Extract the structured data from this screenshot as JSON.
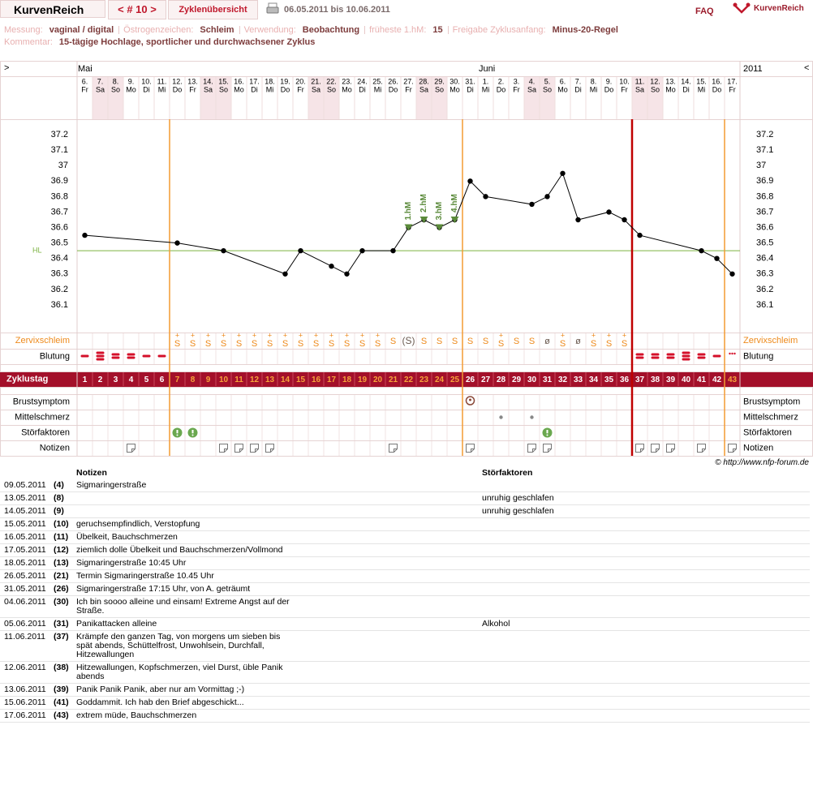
{
  "header": {
    "logo": "KurvenReich",
    "nav": "< # 10 >",
    "overview": "Zyklenübersicht",
    "range": "06.05.2011 bis 10.06.2011",
    "faq": "FAQ",
    "brand": "KurvenReich"
  },
  "info": {
    "fields": [
      {
        "label": "Messung:",
        "value": "vaginal / digital"
      },
      {
        "label": "Östrogenzeichen:",
        "value": "Schleim"
      },
      {
        "label": "Verwendung:",
        "value": "Beobachtung"
      },
      {
        "label": "früheste 1.hM:",
        "value": "15"
      },
      {
        "label": "Freigabe Zyklusanfang:",
        "value": "Minus-20-Regel"
      }
    ],
    "comment_label": "Kommentar:",
    "comment": "15-tägige Hochlage, sportlicher und durchwachsener Zyklus"
  },
  "chart_data": {
    "type": "line",
    "nav_left": ">",
    "nav_right": "<",
    "year": "2011",
    "months": [
      {
        "day": 1,
        "label": "Mai"
      },
      {
        "day": 27,
        "label": "Juni"
      }
    ],
    "dates": [
      "6.",
      "7.",
      "8.",
      "9.",
      "10.",
      "11.",
      "12.",
      "13.",
      "14.",
      "15.",
      "16.",
      "17.",
      "18.",
      "19.",
      "20.",
      "21.",
      "22.",
      "23.",
      "24.",
      "25.",
      "26.",
      "27.",
      "28.",
      "29.",
      "30.",
      "31.",
      "1.",
      "2.",
      "3.",
      "4.",
      "5.",
      "6.",
      "7.",
      "8.",
      "9.",
      "10.",
      "11.",
      "12.",
      "13.",
      "14.",
      "15.",
      "16.",
      "17."
    ],
    "weekdays": [
      "Fr",
      "Sa",
      "So",
      "Mo",
      "Di",
      "Mi",
      "Do",
      "Fr",
      "Sa",
      "So",
      "Mo",
      "Di",
      "Mi",
      "Do",
      "Fr",
      "Sa",
      "So",
      "Mo",
      "Di",
      "Mi",
      "Do",
      "Fr",
      "Sa",
      "So",
      "Mo",
      "Di",
      "Mi",
      "Do",
      "Fr",
      "Sa",
      "So",
      "Mo",
      "Di",
      "Mi",
      "Do",
      "Fr",
      "Sa",
      "So",
      "Mo",
      "Di",
      "Mi",
      "Do",
      "Fr"
    ],
    "weekend": [
      "Sa",
      "So"
    ],
    "x": [
      1,
      7,
      10,
      14,
      15,
      17,
      18,
      19,
      21,
      22,
      23,
      24,
      25,
      26,
      27,
      30,
      31,
      32,
      33,
      35,
      36,
      37,
      41,
      42,
      43
    ],
    "values": [
      36.55,
      36.5,
      36.45,
      36.3,
      36.45,
      36.35,
      36.3,
      36.45,
      36.45,
      36.6,
      36.65,
      36.6,
      36.65,
      36.9,
      36.8,
      36.75,
      36.8,
      36.95,
      36.65,
      36.7,
      36.65,
      36.55,
      36.45,
      36.4,
      36.3
    ],
    "color": "#000000",
    "xlim": [
      0.5,
      43.5
    ],
    "ylim": [
      36.0,
      37.3
    ],
    "yticks": [
      36.1,
      36.2,
      36.3,
      36.4,
      36.5,
      36.6,
      36.7,
      36.8,
      36.9,
      37,
      37.1,
      37.2
    ],
    "hl": {
      "label": "HL",
      "value": 36.45,
      "color": "#7cb342"
    },
    "hm_markers": [
      {
        "day": 22,
        "label": "1.hM"
      },
      {
        "day": 23,
        "label": "2.hM"
      },
      {
        "day": 24,
        "label": "3.hM"
      },
      {
        "day": 25,
        "label": "4.hM"
      }
    ],
    "hm_color": "#5a8a3a",
    "cycle_lines": [
      {
        "after_day": 6,
        "color": "#f39c32"
      },
      {
        "after_day": 25,
        "color": "#f39c32"
      },
      {
        "after_day": 36,
        "color": "#c00000"
      },
      {
        "after_day": 42,
        "color": "#f39c32"
      }
    ],
    "row_labels": {
      "cervix": "Zervixschleim",
      "bleeding": "Blutung",
      "cycle": "Zyklustag",
      "breast": "Brustsymptom",
      "midpain": "Mittelschmerz",
      "disturb": "Störfaktoren",
      "notes": "Notizen"
    },
    "cervix": [
      null,
      null,
      null,
      null,
      null,
      null,
      {
        "sign": "+",
        "mucus": "S"
      },
      {
        "sign": "+",
        "mucus": "S"
      },
      {
        "sign": "+",
        "mucus": "S"
      },
      {
        "sign": "+",
        "mucus": "S"
      },
      {
        "sign": "+",
        "mucus": "S"
      },
      {
        "sign": "+",
        "mucus": "S"
      },
      {
        "sign": "+",
        "mucus": "S"
      },
      {
        "sign": "+",
        "mucus": "S"
      },
      {
        "sign": "+",
        "mucus": "S"
      },
      {
        "sign": "+",
        "mucus": "S"
      },
      {
        "sign": "+",
        "mucus": "S"
      },
      {
        "sign": "+",
        "mucus": "S"
      },
      {
        "sign": "+",
        "mucus": "S"
      },
      {
        "sign": "+",
        "mucus": "S"
      },
      {
        "mucus": "S"
      },
      {
        "mucus": "(S)"
      },
      {
        "mucus": "S"
      },
      {
        "mucus": "S"
      },
      {
        "mucus": "S"
      },
      {
        "mucus": "S"
      },
      {
        "mucus": "S"
      },
      {
        "sign": "+",
        "mucus": "S"
      },
      {
        "mucus": "S"
      },
      {
        "mucus": "S"
      },
      {
        "mucus": "ø"
      },
      {
        "sign": "+",
        "mucus": "S"
      },
      {
        "mucus": "ø"
      },
      {
        "sign": "+",
        "mucus": "S"
      },
      {
        "sign": "+",
        "mucus": "S"
      },
      {
        "sign": "+",
        "mucus": "S"
      },
      null,
      null,
      null,
      null,
      null,
      null,
      null
    ],
    "bleeding": [
      1,
      3,
      2,
      2,
      1,
      1,
      null,
      null,
      null,
      null,
      null,
      null,
      null,
      null,
      null,
      null,
      null,
      null,
      null,
      null,
      null,
      null,
      null,
      null,
      null,
      null,
      null,
      null,
      null,
      null,
      null,
      null,
      null,
      null,
      null,
      null,
      2,
      2,
      2,
      3,
      2,
      1,
      null
    ],
    "spotting_days": [
      43
    ],
    "cycle_days": [
      1,
      2,
      3,
      4,
      5,
      6,
      7,
      8,
      9,
      10,
      11,
      12,
      13,
      14,
      15,
      16,
      17,
      18,
      19,
      20,
      21,
      22,
      23,
      24,
      25,
      26,
      27,
      28,
      29,
      30,
      31,
      32,
      33,
      34,
      35,
      36,
      37,
      38,
      39,
      40,
      41,
      42,
      43
    ],
    "highlight_ranges": [
      [
        7,
        25
      ],
      [
        43,
        43
      ]
    ],
    "breast_days": [
      26
    ],
    "midpain_days": [
      28,
      30
    ],
    "disturb_days": [
      7,
      8,
      31
    ],
    "note_days": [
      4,
      10,
      11,
      12,
      13,
      21,
      26,
      30,
      31,
      37,
      38,
      39,
      41,
      43
    ]
  },
  "copyright": "© http://www.nfp-forum.de",
  "table": {
    "headers": [
      "Notizen",
      "Störfaktoren"
    ],
    "rows": [
      [
        "09.05.2011",
        "(4)",
        "Sigmaringerstraße",
        null
      ],
      [
        "13.05.2011",
        "(8)",
        null,
        "unruhig geschlafen"
      ],
      [
        "14.05.2011",
        "(9)",
        null,
        "unruhig geschlafen"
      ],
      [
        "15.05.2011",
        "(10)",
        "geruchsempfindlich, Verstopfung",
        null
      ],
      [
        "16.05.2011",
        "(11)",
        "Übelkeit, Bauchschmerzen",
        null
      ],
      [
        "17.05.2011",
        "(12)",
        "ziemlich dolle Übelkeit und Bauchschmerzen/Vollmond",
        null
      ],
      [
        "18.05.2011",
        "(13)",
        "Sigmaringerstraße 10:45 Uhr",
        null
      ],
      [
        "26.05.2011",
        "(21)",
        "Termin Sigmaringerstraße 10.45 Uhr",
        null
      ],
      [
        "31.05.2011",
        "(26)",
        "Sigmaringerstraße 17:15 Uhr, von A. geträumt",
        null
      ],
      [
        "04.06.2011",
        "(30)",
        "Ich bin soooo alleine und einsam! Extreme Angst auf der Straße.",
        null
      ],
      [
        "05.06.2011",
        "(31)",
        "Panikattacken alleine",
        "Alkohol"
      ],
      [
        "11.06.2011",
        "(37)",
        "Krämpfe den ganzen Tag, von morgens um sieben bis spät abends, Schüttelfrost, Unwohlsein, Durchfall, Hitzewallungen",
        null
      ],
      [
        "12.06.2011",
        "(38)",
        "Hitzewallungen, Kopfschmerzen, viel Durst, üble Panik abends",
        null
      ],
      [
        "13.06.2011",
        "(39)",
        "Panik Panik Panik, aber nur am Vormittag ;-)",
        null
      ],
      [
        "15.06.2011",
        "(41)",
        "Goddammit. Ich hab den Brief abgeschickt...",
        null
      ],
      [
        "17.06.2011",
        "(43)",
        "extrem müde, Bauchschmerzen",
        null
      ]
    ]
  }
}
